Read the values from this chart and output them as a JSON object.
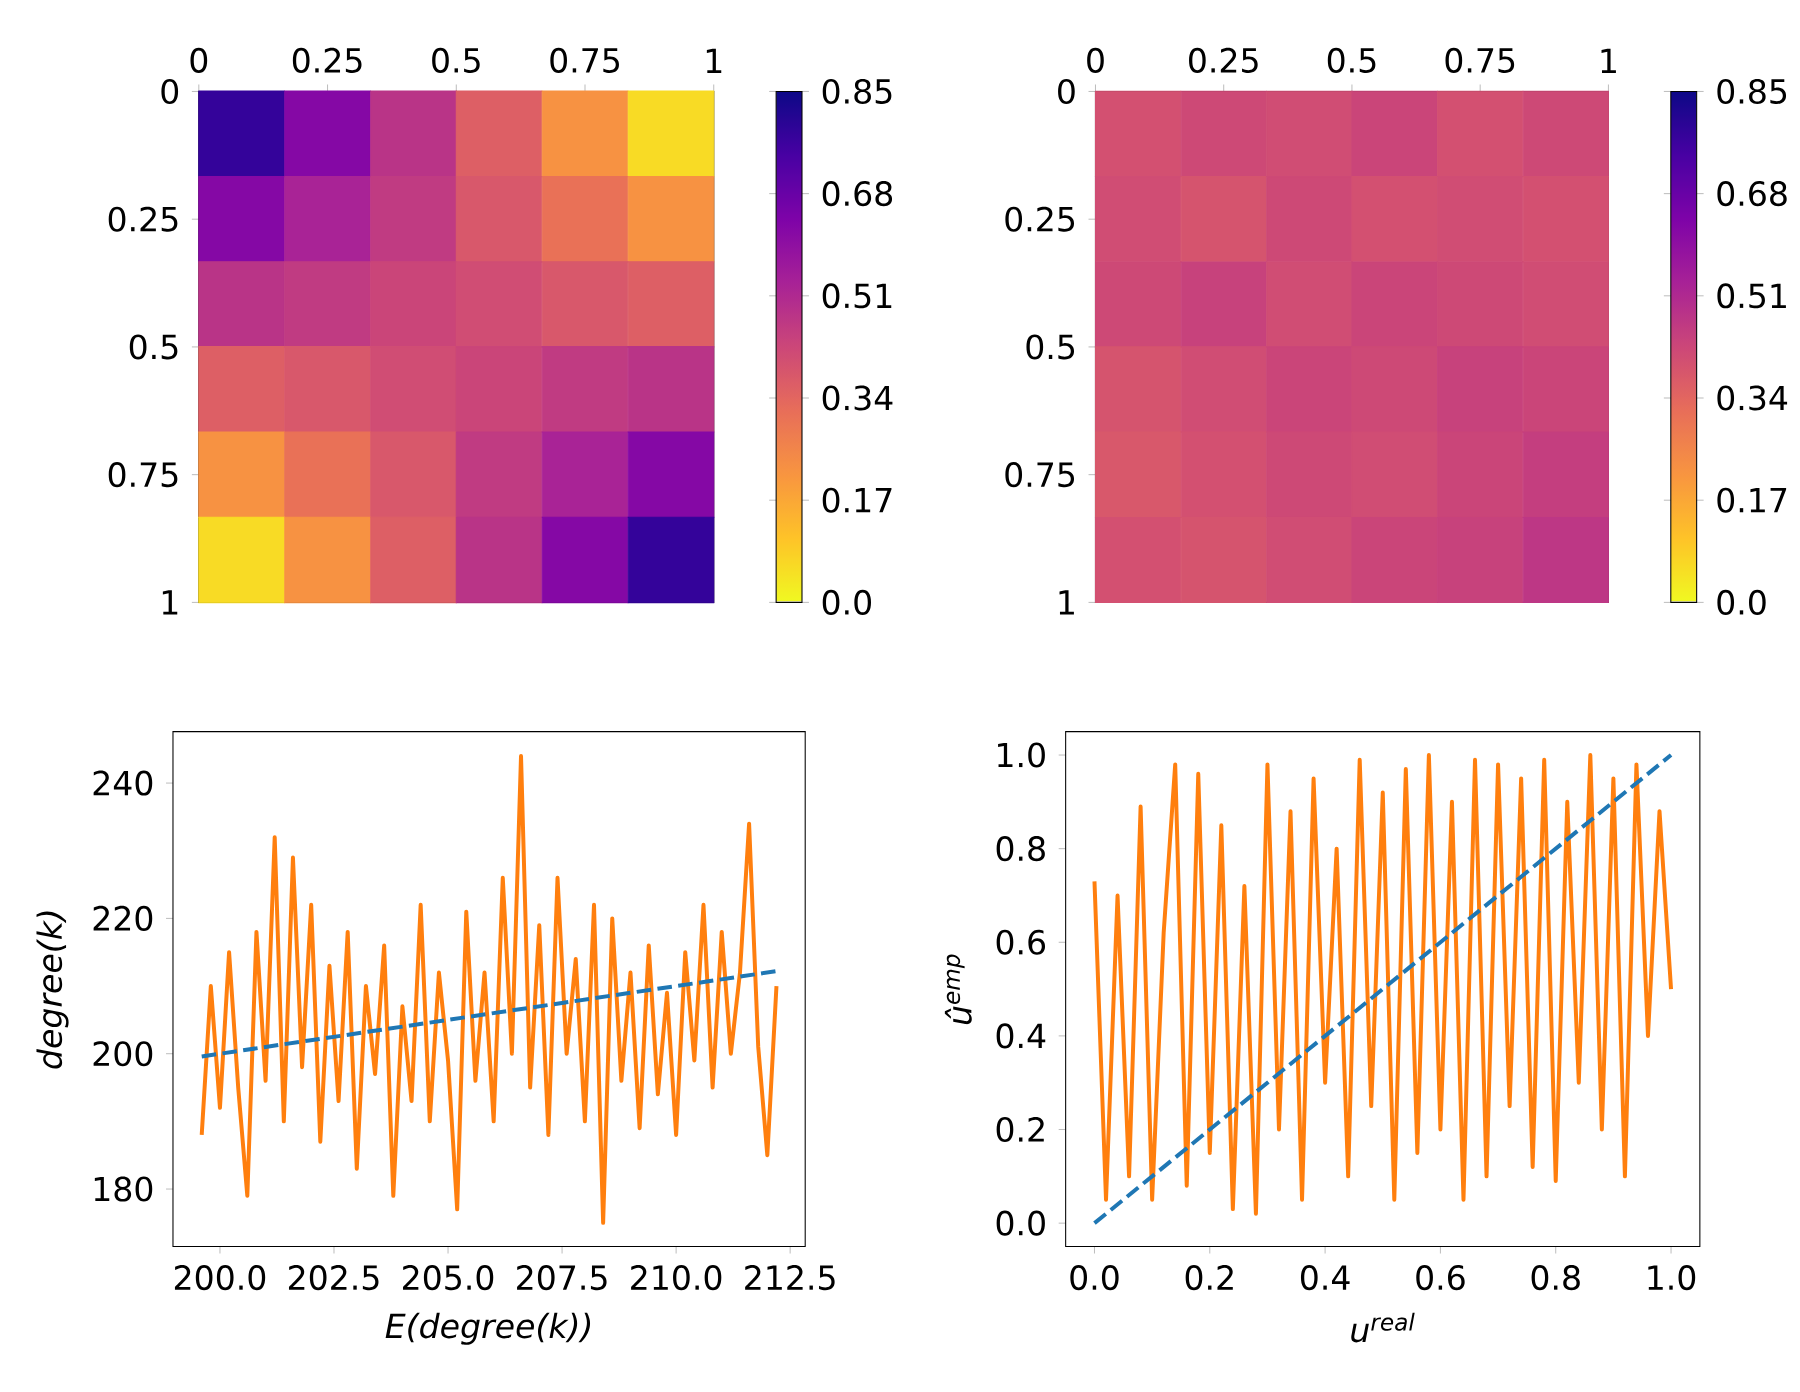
{
  "chart_data": [
    {
      "type": "scatter",
      "marker": "square",
      "x": [
        0.083,
        0.25,
        0.417,
        0.583,
        0.75,
        0.917,
        0.083,
        0.25,
        0.417,
        0.583,
        0.75,
        0.917,
        0.083,
        0.25,
        0.417,
        0.583,
        0.75,
        0.917,
        0.083,
        0.25,
        0.417,
        0.583,
        0.75,
        0.917,
        0.083,
        0.25,
        0.417,
        0.583,
        0.75,
        0.917,
        0.083,
        0.25,
        0.417,
        0.583,
        0.75,
        0.917
      ],
      "values": [
        0.083,
        0.083,
        0.083,
        0.083,
        0.083,
        0.083,
        0.25,
        0.25,
        0.25,
        0.25,
        0.25,
        0.25,
        0.417,
        0.417,
        0.417,
        0.417,
        0.417,
        0.417,
        0.583,
        0.583,
        0.583,
        0.583,
        0.583,
        0.583,
        0.75,
        0.75,
        0.75,
        0.75,
        0.75,
        0.75,
        0.917,
        0.917,
        0.917,
        0.917,
        0.917,
        0.917
      ],
      "cvalues": [
        0.78,
        0.62,
        0.48,
        0.36,
        0.22,
        0.06,
        0.62,
        0.53,
        0.46,
        0.38,
        0.31,
        0.22,
        0.48,
        0.46,
        0.43,
        0.41,
        0.38,
        0.36,
        0.36,
        0.38,
        0.41,
        0.43,
        0.46,
        0.48,
        0.22,
        0.31,
        0.38,
        0.46,
        0.53,
        0.62,
        0.06,
        0.22,
        0.36,
        0.48,
        0.62,
        0.78
      ],
      "clim": [
        0,
        0.85
      ],
      "cticks": [
        {
          "value": 0,
          "label": "0.0"
        },
        0.17,
        0.34,
        0.51,
        0.68,
        0.85
      ],
      "xlim": [
        0,
        1
      ],
      "ylim": [
        1,
        0
      ],
      "xticks": [
        0,
        0.25,
        0.5,
        0.75,
        1
      ],
      "yticks": [
        0,
        0.25,
        0.5,
        0.75,
        1
      ]
    },
    {
      "type": "scatter",
      "marker": "square",
      "x": [
        0.083,
        0.25,
        0.417,
        0.583,
        0.75,
        0.917,
        0.083,
        0.25,
        0.417,
        0.583,
        0.75,
        0.917,
        0.083,
        0.25,
        0.417,
        0.583,
        0.75,
        0.917,
        0.083,
        0.25,
        0.417,
        0.583,
        0.75,
        0.917,
        0.083,
        0.25,
        0.417,
        0.583,
        0.75,
        0.917,
        0.083,
        0.25,
        0.417,
        0.583,
        0.75,
        0.917
      ],
      "values": [
        0.083,
        0.083,
        0.083,
        0.083,
        0.083,
        0.083,
        0.25,
        0.25,
        0.25,
        0.25,
        0.25,
        0.25,
        0.417,
        0.417,
        0.417,
        0.417,
        0.417,
        0.417,
        0.583,
        0.583,
        0.583,
        0.583,
        0.583,
        0.583,
        0.75,
        0.75,
        0.75,
        0.75,
        0.75,
        0.75,
        0.917,
        0.917,
        0.917,
        0.917,
        0.917,
        0.917
      ],
      "cvalues": [
        0.4,
        0.42,
        0.41,
        0.43,
        0.4,
        0.42,
        0.41,
        0.39,
        0.42,
        0.4,
        0.41,
        0.4,
        0.42,
        0.44,
        0.41,
        0.43,
        0.42,
        0.41,
        0.39,
        0.41,
        0.43,
        0.42,
        0.44,
        0.43,
        0.38,
        0.4,
        0.42,
        0.41,
        0.43,
        0.45,
        0.4,
        0.39,
        0.41,
        0.43,
        0.44,
        0.47
      ],
      "clim": [
        0,
        0.85
      ],
      "cticks": [
        {
          "value": 0,
          "label": "0.0"
        },
        0.17,
        0.34,
        0.51,
        0.68,
        0.85
      ],
      "xlim": [
        0,
        1
      ],
      "ylim": [
        1,
        0
      ],
      "xticks": [
        0,
        0.25,
        0.5,
        0.75,
        1
      ],
      "yticks": [
        0,
        0.25,
        0.5,
        0.75,
        1
      ]
    },
    {
      "type": "line",
      "xlabel": "E(degree(k))",
      "ylabel": "degree(k)",
      "xlim": [
        198.97,
        212.83
      ],
      "ylim": [
        171.5,
        247.6
      ],
      "xticks": [
        {
          "value": 200,
          "label": "200.0"
        },
        {
          "value": 202.5,
          "label": "202.5"
        },
        {
          "value": 205,
          "label": "205.0"
        },
        {
          "value": 207.5,
          "label": "207.5"
        },
        {
          "value": 210,
          "label": "210.0"
        },
        {
          "value": 212.5,
          "label": "212.5"
        }
      ],
      "yticks": [
        180,
        200,
        220,
        240
      ],
      "series": [
        {
          "color": "#ff7f0e",
          "line_style": "solid",
          "x": [
            199.6,
            199.8,
            200.0,
            200.2,
            200.4,
            200.6,
            200.8,
            201.0,
            201.2,
            201.4,
            201.6,
            201.8,
            202.0,
            202.2,
            202.4,
            202.6,
            202.8,
            203.0,
            203.2,
            203.4,
            203.6,
            203.8,
            204.0,
            204.2,
            204.4,
            204.6,
            204.8,
            205.0,
            205.2,
            205.4,
            205.6,
            205.8,
            206.0,
            206.2,
            206.4,
            206.6,
            206.8,
            207.0,
            207.2,
            207.4,
            207.6,
            207.8,
            208.0,
            208.2,
            208.4,
            208.6,
            208.8,
            209.0,
            209.2,
            209.4,
            209.6,
            209.8,
            210.0,
            210.2,
            210.4,
            210.6,
            210.8,
            211.0,
            211.2,
            211.4,
            211.6,
            211.8,
            212.0,
            212.2
          ],
          "values": [
            188,
            210,
            192,
            215,
            195,
            179,
            218,
            196,
            232,
            190,
            229,
            198,
            222,
            187,
            213,
            193,
            218,
            183,
            210,
            197,
            216,
            179,
            207,
            193,
            222,
            190,
            212,
            199,
            177,
            221,
            196,
            212,
            190,
            226,
            200,
            244,
            195,
            219,
            188,
            226,
            200,
            214,
            190,
            222,
            175,
            220,
            196,
            212,
            189,
            216,
            194,
            209,
            188,
            215,
            199,
            222,
            195,
            218,
            200,
            212,
            234,
            201,
            185,
            210
          ]
        },
        {
          "color": "#1f77b4",
          "line_style": "dashed",
          "x": [
            199.6,
            212.2
          ],
          "values": [
            199.6,
            212.2
          ]
        }
      ]
    },
    {
      "type": "line",
      "xlabel": "u$^{real}$",
      "ylabel": "û$^{emp}$",
      "xlim": [
        -0.05,
        1.05
      ],
      "ylim": [
        -0.05,
        1.05
      ],
      "xticks": [
        {
          "value": 0,
          "label": "0.0"
        },
        0.2,
        0.4,
        0.6,
        0.8,
        {
          "value": 1,
          "label": "1.0"
        }
      ],
      "yticks": [
        {
          "value": 0,
          "label": "0.0"
        },
        0.2,
        0.4,
        0.6,
        0.8,
        {
          "value": 1,
          "label": "1.0"
        }
      ],
      "series": [
        {
          "color": "#ff7f0e",
          "line_style": "solid",
          "x": [
            0,
            0.02,
            0.04,
            0.06,
            0.08,
            0.1,
            0.12,
            0.14,
            0.16,
            0.18,
            0.2,
            0.22,
            0.24,
            0.26,
            0.28,
            0.3,
            0.32,
            0.34,
            0.36,
            0.38,
            0.4,
            0.42,
            0.44,
            0.46,
            0.48,
            0.5,
            0.52,
            0.54,
            0.56,
            0.58,
            0.6,
            0.62,
            0.64,
            0.66,
            0.68,
            0.7,
            0.72,
            0.74,
            0.76,
            0.78,
            0.8,
            0.82,
            0.84,
            0.86,
            0.88,
            0.9,
            0.92,
            0.94,
            0.96,
            0.98,
            1.0
          ],
          "values": [
            0.73,
            0.05,
            0.7,
            0.1,
            0.89,
            0.05,
            0.62,
            0.98,
            0.08,
            0.96,
            0.15,
            0.85,
            0.03,
            0.72,
            0.02,
            0.98,
            0.2,
            0.88,
            0.05,
            0.95,
            0.3,
            0.8,
            0.1,
            0.99,
            0.25,
            0.92,
            0.05,
            0.97,
            0.15,
            1.0,
            0.2,
            0.9,
            0.05,
            0.99,
            0.1,
            0.98,
            0.25,
            0.95,
            0.12,
            0.99,
            0.09,
            0.9,
            0.3,
            1.0,
            0.2,
            0.95,
            0.1,
            0.98,
            0.4,
            0.88,
            0.5
          ]
        },
        {
          "color": "#1f77b4",
          "line_style": "dashed",
          "x": [
            0,
            1
          ],
          "values": [
            0,
            1
          ]
        }
      ]
    }
  ]
}
